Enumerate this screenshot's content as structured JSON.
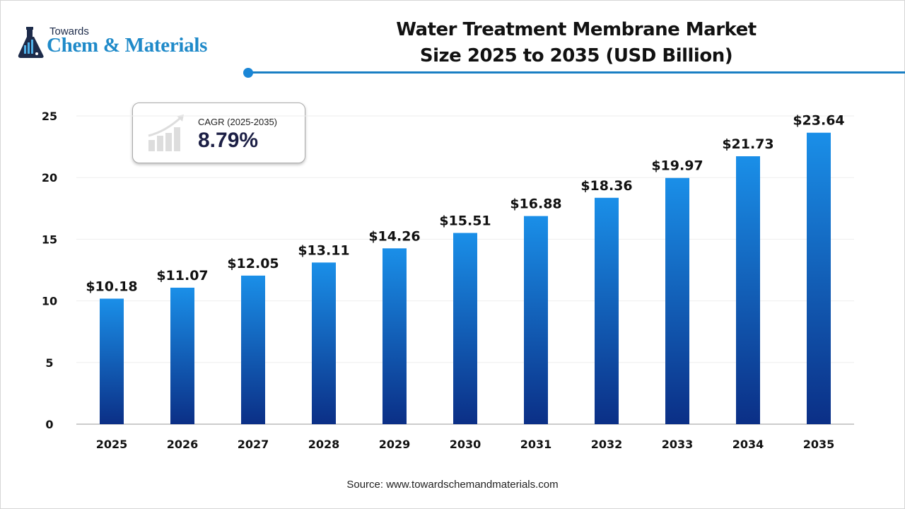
{
  "logo": {
    "line1": "Towards",
    "line2": "Chem & Materials"
  },
  "header": {
    "title_line1": "Water Treatment Membrane Market",
    "title_line2": "Size 2025 to 2035 (USD Billion)"
  },
  "cagr": {
    "label": "CAGR (2025-2035)",
    "value": "8.79%",
    "icon": "growth-chart-icon"
  },
  "source": "Source: www.towardschemandmaterials.com",
  "colors": {
    "bar_top": "#1a8fe8",
    "bar_bottom": "#0b2f86",
    "accent": "#1a7fc4"
  },
  "chart_data": {
    "type": "bar",
    "title": "Water Treatment Membrane Market Size 2025 to 2035 (USD Billion)",
    "categories": [
      "2025",
      "2026",
      "2027",
      "2028",
      "2029",
      "2030",
      "2031",
      "2032",
      "2033",
      "2034",
      "2035"
    ],
    "values": [
      10.18,
      11.07,
      12.05,
      13.11,
      14.26,
      15.51,
      16.88,
      18.36,
      19.97,
      21.73,
      23.64
    ],
    "data_labels": [
      "$10.18",
      "$11.07",
      "$12.05",
      "$13.11",
      "$14.26",
      "$15.51",
      "$16.88",
      "$18.36",
      "$19.97",
      "$21.73",
      "$23.64"
    ],
    "yticks": [
      "0",
      "5",
      "10",
      "15",
      "20",
      "25"
    ],
    "ylim": [
      0,
      25
    ],
    "xlabel": "",
    "ylabel": "",
    "grid": true,
    "legend": "none"
  }
}
